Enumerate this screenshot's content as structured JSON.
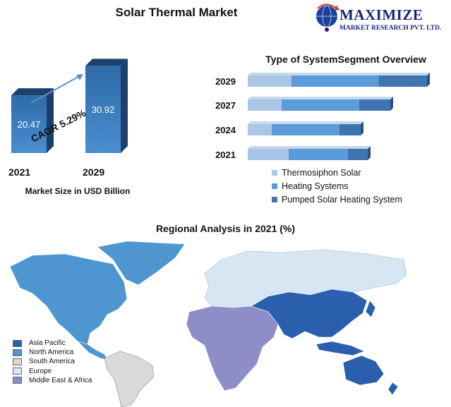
{
  "header": {
    "title": "Solar Thermal Market",
    "logo_name": "MAXIMIZE",
    "logo_sub": "MARKET RESEARCH PVT. LTD."
  },
  "colors": {
    "bar_front": "#2e6aa8",
    "bar_front_light": "#4a8fd0",
    "bar_dark": "#1d3f6b",
    "thermosiphon": "#a9c6e6",
    "heating": "#5b9bd8",
    "pumped": "#3e74b0",
    "asia_pacific": "#2a5fad",
    "north_america": "#4f96d1",
    "south_america": "#d9d9d9",
    "europe": "#d6e7f3",
    "mea": "#8d8ec8"
  },
  "chart_data": [
    {
      "type": "bar",
      "categories": [
        "2021",
        "2029"
      ],
      "values": [
        20.47,
        30.92
      ],
      "xlabel": "Market Size in USD Billion",
      "annotation": "CAGR 5.29%"
    },
    {
      "type": "bar",
      "orientation": "horizontal",
      "stacked": true,
      "title": "Type of SystemSegment Overview",
      "categories": [
        "2029",
        "2027",
        "2024",
        "2021"
      ],
      "series": [
        {
          "name": "Thermosiphon Solar",
          "values": [
            62,
            48,
            34,
            58
          ]
        },
        {
          "name": "Heating Systems",
          "values": [
            124,
            110,
            96,
            84
          ]
        },
        {
          "name": "Pumped Solar Heating System",
          "values": [
            68,
            44,
            30,
            28
          ]
        }
      ]
    },
    {
      "type": "map",
      "title": "Regional Analysis in 2021 (%)",
      "legend": [
        "Asia Pacific",
        "North America",
        "South America",
        "Europe",
        "Middle East & Africa"
      ]
    }
  ]
}
